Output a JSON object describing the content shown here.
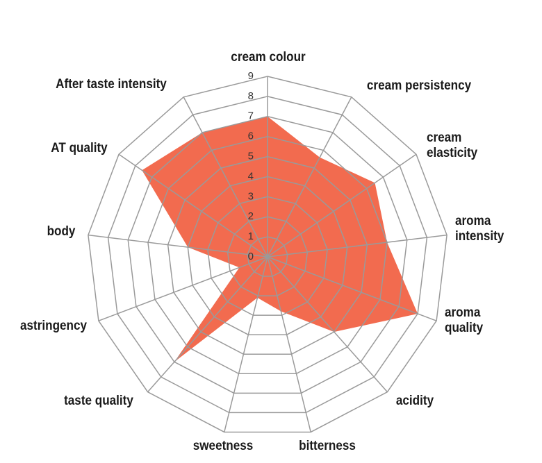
{
  "chart_data": {
    "type": "radar",
    "categories": [
      "cream colour",
      "cream persistency",
      "cream elasticity",
      "aroma intensity",
      "aroma quality",
      "acidity",
      "bitterness",
      "sweetness",
      "taste quality",
      "astringency",
      "body",
      "AT quality",
      "After taste intensity"
    ],
    "values": [
      7,
      5.6,
      6.5,
      6,
      8,
      5,
      2.8,
      2.1,
      7,
      1.5,
      4,
      7.6,
      7
    ],
    "color": "#f26b4f",
    "rlim": [
      0,
      9
    ],
    "rticks": [
      0,
      1,
      2,
      3,
      4,
      5,
      6,
      7,
      8,
      9
    ],
    "grid": true
  }
}
